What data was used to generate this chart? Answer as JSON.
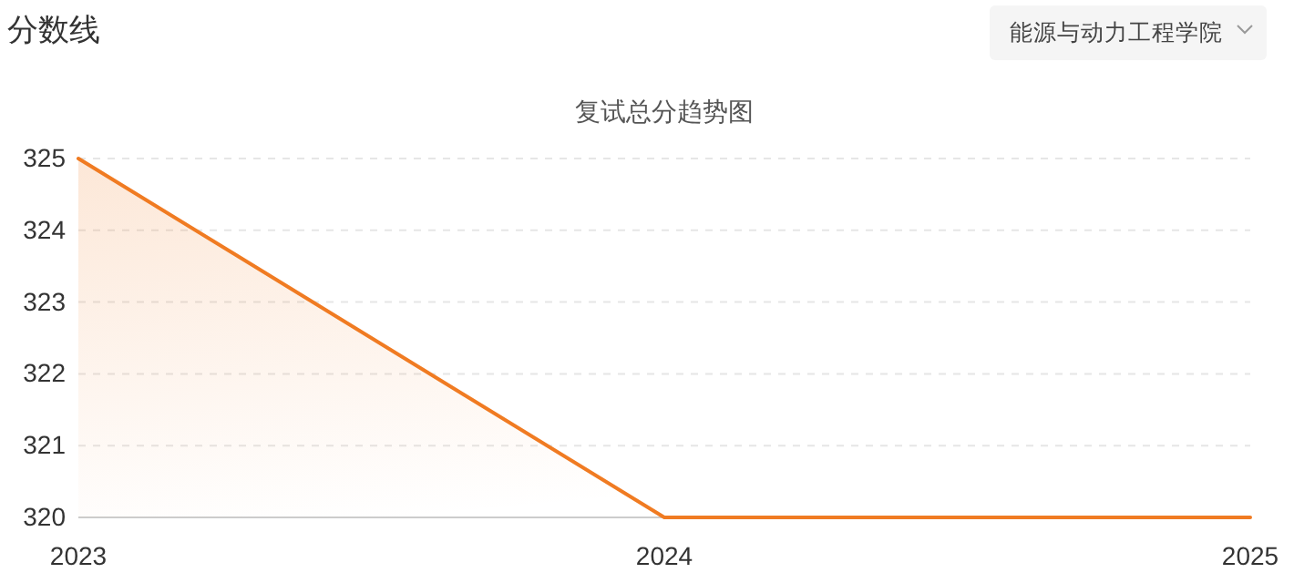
{
  "chart_data": {
    "type": "area",
    "title": "复试总分趋势图",
    "annotations": [
      "分数线",
      "能源与动力工程学院"
    ],
    "categories": [
      "2023",
      "2024",
      "2025"
    ],
    "series": [
      {
        "color": "#f07b22",
        "values": [
          325,
          320,
          320
        ]
      }
    ],
    "ylim": [
      320,
      325
    ],
    "yticks": [
      320,
      321,
      322,
      323,
      324,
      325
    ],
    "grid": "y"
  }
}
